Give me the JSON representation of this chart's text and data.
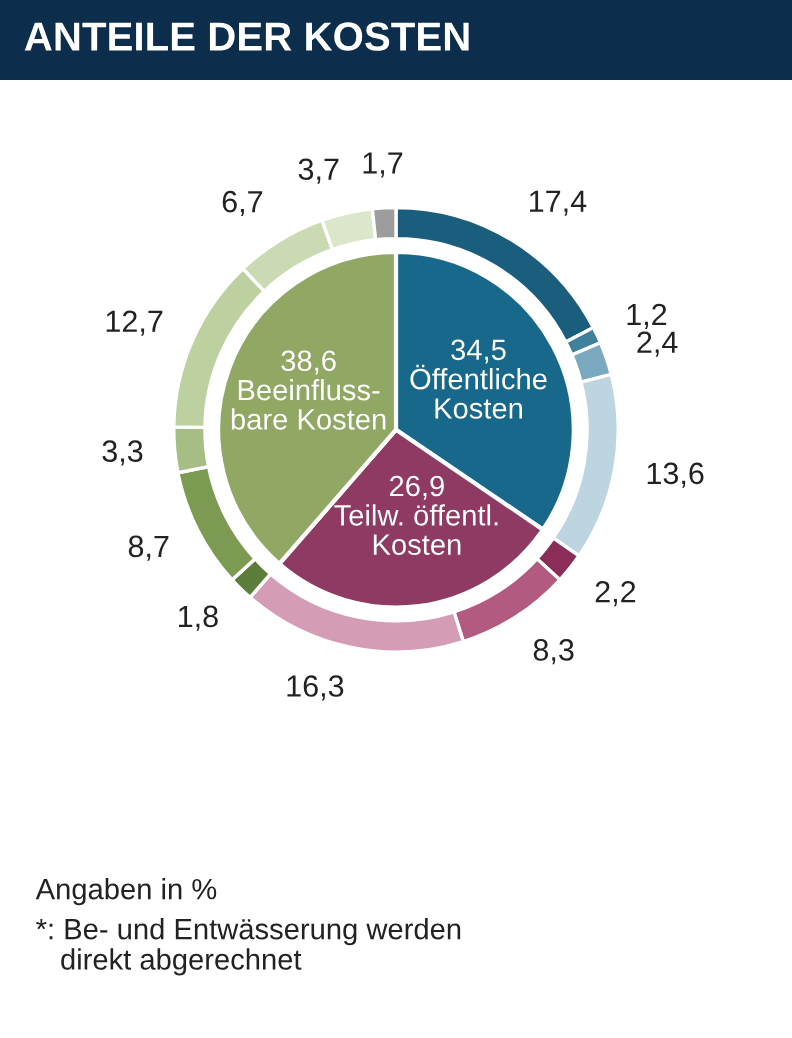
{
  "chart_data": {
    "type": "donut",
    "title": "ANTEILE DER KOSTEN",
    "series": [
      {
        "type": "pie",
        "values": [
          34.5,
          26.9,
          38.6
        ],
        "value_labels": [
          "34,5\nÖffentliche\nKosten",
          "26,9\nTeilw. öffentl.\nKosten",
          "38,6\nBeeinfluss-\nbare Kosten"
        ],
        "colors": [
          "#17688a",
          "#8e3a63",
          "#91a865"
        ]
      },
      {
        "values": [
          17.4,
          1.2,
          2.4,
          13.6,
          2.2,
          8.3,
          16.3,
          1.8,
          8.7,
          3.3,
          12.7,
          6.7,
          3.7,
          1.7
        ],
        "value_labels": [
          "17,4",
          "1,2",
          "2,4",
          "13,6",
          "2,2",
          "8,3",
          "16,3",
          "1,8",
          "8,7",
          "3,3",
          "12,7",
          "6,7",
          "3,7",
          "1,7"
        ],
        "colors": [
          "#1a5d7c",
          "#3f809b",
          "#7ba9c0",
          "#bdd4e1",
          "#8a2d59",
          "#b25a80",
          "#d49cb5",
          "#5d7d3b",
          "#7c9a52",
          "#a6be85",
          "#bcd0a0",
          "#cbdab3",
          "#dce6ca",
          "#9d9d9d"
        ]
      }
    ],
    "annotations": [
      "Angaben in %",
      "*: Be- und Entwässerung werden\n   direkt abgerechnet"
    ]
  }
}
